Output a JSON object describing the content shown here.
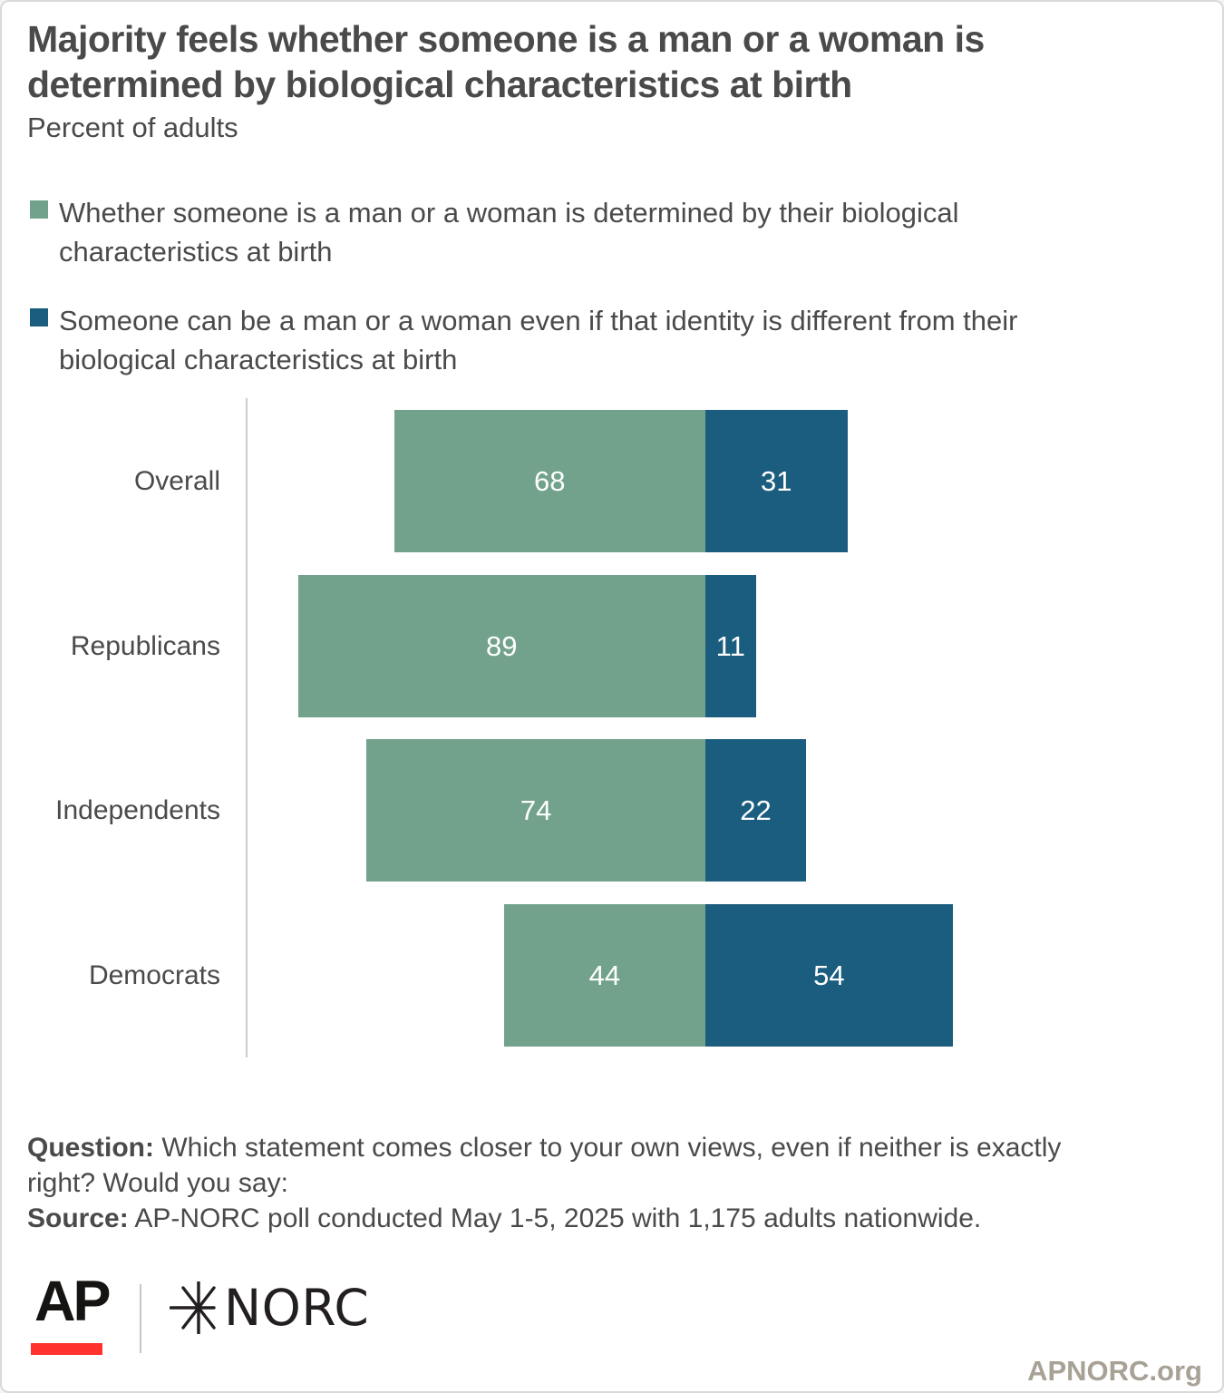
{
  "page": {
    "title": "Majority feels whether someone is a man or a woman is\ndetermined by biological characteristics at birth",
    "subtitle": "Percent of adults"
  },
  "legend": {
    "items": [
      {
        "label": "Whether someone is a man or a woman is determined by their biological\ncharacteristics at birth",
        "color": "#72a28c"
      },
      {
        "label": "Someone can be a man or a woman even if that identity is different from their\nbiological characteristics at birth",
        "color": "#1b5d7e"
      }
    ]
  },
  "chart_data": {
    "type": "bar",
    "orientation": "horizontal",
    "variant": "diverging-stacked",
    "title": "Majority feels whether someone is a man or a woman is determined by biological characteristics at birth",
    "subtitle": "Percent of adults",
    "categories": [
      "Overall",
      "Republicans",
      "Independents",
      "Democrats"
    ],
    "series": [
      {
        "name": "Whether someone is a man or a woman is determined by their biological characteristics at birth",
        "color": "#72a28c",
        "values": [
          68,
          89,
          74,
          44
        ]
      },
      {
        "name": "Someone can be a man or a woman even if that identity is different from their biological characteristics at birth",
        "color": "#1b5d7e",
        "values": [
          31,
          11,
          22,
          54
        ]
      }
    ],
    "value_unit": "percent of adults",
    "bar_labels": "inside-center-white",
    "grid": false,
    "legend_position": "top-left",
    "axis_line_color": "#cccccc"
  },
  "footnote": {
    "question_label": "Question:",
    "question_text": " Which statement comes closer to your own views, even if neither is exactly\nright? Would you say:",
    "source_label": "Source:",
    "source_text": " AP-NORC poll conducted May 1-5, 2025 with 1,175 adults nationwide."
  },
  "footer": {
    "ap_logo": "AP",
    "ap_red": "#ff322e",
    "norc_star_icon": "six-point-asterisk",
    "norc_logo": "NORC",
    "site": "APNORC.org"
  }
}
